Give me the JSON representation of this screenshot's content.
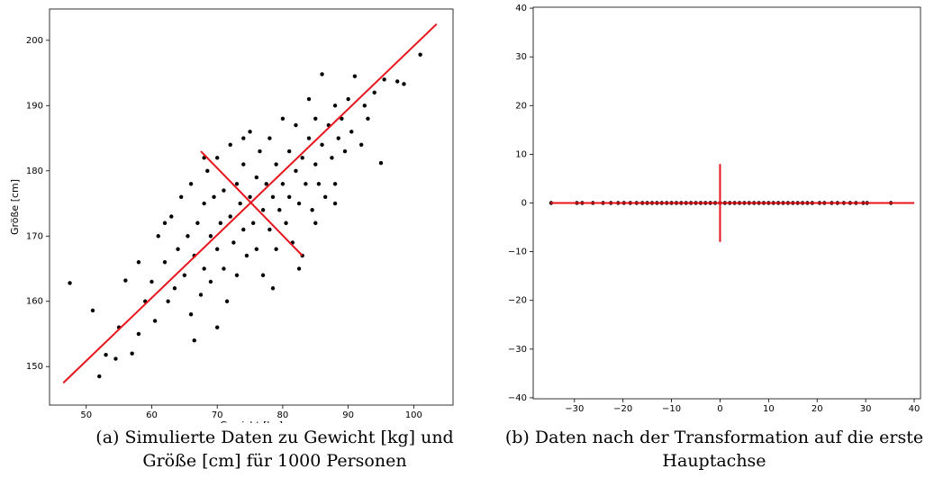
{
  "chart_data": [
    {
      "type": "scatter",
      "xlabel": "Gewicht [kg]",
      "ylabel": "Größe [cm]",
      "color": "#000000",
      "xlim": [
        44.4,
        106.0
      ],
      "ylim": [
        144.1,
        204.8
      ],
      "xticks": [
        50,
        60,
        70,
        80,
        90,
        100
      ],
      "yticks": [
        150,
        160,
        170,
        180,
        190,
        200
      ],
      "x": [
        47.5,
        51,
        52,
        53,
        54.5,
        55,
        56,
        57,
        58,
        59,
        60,
        60.5,
        61,
        62,
        62.5,
        63,
        63.5,
        64,
        64.5,
        65,
        65.5,
        66,
        66,
        66.5,
        67,
        67.5,
        68,
        68,
        68.5,
        69,
        69,
        69.5,
        70,
        70,
        70.5,
        71,
        71,
        71.5,
        72,
        72,
        72.5,
        73,
        73,
        73.5,
        74,
        74,
        74.5,
        75,
        75,
        75.5,
        76,
        76,
        76.5,
        77,
        77,
        77.5,
        78,
        78,
        78.5,
        79,
        79,
        79.5,
        80,
        80,
        80.5,
        81,
        81,
        81.5,
        82,
        82,
        82.5,
        83,
        83,
        83.5,
        84,
        84,
        84.5,
        85,
        85,
        85.5,
        86,
        86,
        86.5,
        87,
        87.5,
        88,
        88,
        88.5,
        89,
        89.5,
        90,
        90.5,
        91,
        92,
        92.5,
        93,
        94,
        95,
        95.5,
        97.5,
        98.5,
        101,
        66.5,
        70,
        78.5,
        82.5,
        58,
        62,
        68,
        74,
        85,
        88
      ],
      "y": [
        162.8,
        158.6,
        148.5,
        151.8,
        151.2,
        156,
        163.2,
        152,
        166,
        160,
        163,
        157,
        170,
        166,
        160,
        173,
        162,
        168,
        176,
        164,
        170,
        158,
        178,
        167,
        172,
        161,
        175,
        165,
        180,
        170,
        163,
        176,
        168,
        182,
        172,
        165,
        177,
        160,
        173,
        184,
        169,
        178,
        164,
        175,
        171,
        181,
        167,
        176,
        186,
        172,
        179,
        168,
        183,
        174,
        164,
        178,
        171,
        185,
        176,
        181,
        168,
        174,
        178,
        188,
        172,
        183,
        176,
        169,
        180,
        187,
        175,
        182,
        167,
        178,
        185,
        191,
        174,
        181,
        188,
        178,
        184,
        194.8,
        176,
        187,
        182,
        190,
        178,
        185,
        188,
        183,
        191,
        186,
        194.5,
        184,
        190,
        188,
        192,
        181.2,
        194,
        193.7,
        193.3,
        197.8,
        154,
        156,
        162,
        165,
        155,
        172,
        182,
        185,
        172,
        175
      ],
      "lines": [
        {
          "color": "#e8141b",
          "x": [
            46.5,
            103.5
          ],
          "y": [
            147.5,
            202.5
          ]
        },
        {
          "color": "#e8141b",
          "x": [
            67.5,
            83
          ],
          "y": [
            183,
            167
          ]
        }
      ]
    },
    {
      "type": "scatter",
      "color": "#000000",
      "xlim": [
        -38.5,
        41.3
      ],
      "ylim": [
        -40.2,
        40.2
      ],
      "xticks": [
        {
          "value": -30,
          "label": "−30"
        },
        {
          "value": -20,
          "label": "−20"
        },
        {
          "value": -10,
          "label": "−10"
        },
        0,
        10,
        20,
        30,
        40
      ],
      "yticks": [
        {
          "value": -40,
          "label": "−40"
        },
        {
          "value": -30,
          "label": "−30"
        },
        {
          "value": -20,
          "label": "−20"
        },
        {
          "value": -10,
          "label": "−10"
        },
        0,
        10,
        20,
        30,
        40
      ],
      "x": [
        -34.8,
        -29.5,
        -28.4,
        -26.2,
        -24.1,
        -22.5,
        -21,
        -19.8,
        -18.5,
        -17.2,
        -16,
        -15,
        -14,
        -13,
        -12,
        -11,
        -10,
        -9,
        -8,
        -7,
        -6,
        -5,
        -4,
        -3,
        -2,
        -1,
        0,
        1,
        2,
        3,
        4,
        5,
        6,
        7,
        8,
        9,
        10,
        11,
        12,
        13,
        14,
        15,
        16,
        17,
        18,
        19,
        20.5,
        21.5,
        23,
        24.2,
        25.5,
        26.8,
        28,
        29.5,
        30.3,
        35.2
      ],
      "y": [
        0,
        0,
        0,
        0,
        0,
        0,
        0,
        0,
        0,
        0,
        0,
        0,
        0,
        0,
        0,
        0,
        0,
        0,
        0,
        0,
        0,
        0,
        0,
        0,
        0,
        0,
        0,
        0,
        0,
        0,
        0,
        0,
        0,
        0,
        0,
        0,
        0,
        0,
        0,
        0,
        0,
        0,
        0,
        0,
        0,
        0,
        0,
        0,
        0,
        0,
        0,
        0,
        0,
        0,
        0,
        0
      ],
      "lines": [
        {
          "color": "#e8141b",
          "x": [
            -35,
            40
          ],
          "y": [
            0,
            0
          ]
        },
        {
          "color": "#e8141b",
          "x": [
            0,
            0
          ],
          "y": [
            -8,
            8
          ]
        }
      ]
    }
  ],
  "captions": [
    "(a) Simulierte Daten zu Gewicht [kg] und Größe [cm] für 1000 Personen",
    "(b) Daten nach der Transformation auf die erste Hauptachse"
  ]
}
